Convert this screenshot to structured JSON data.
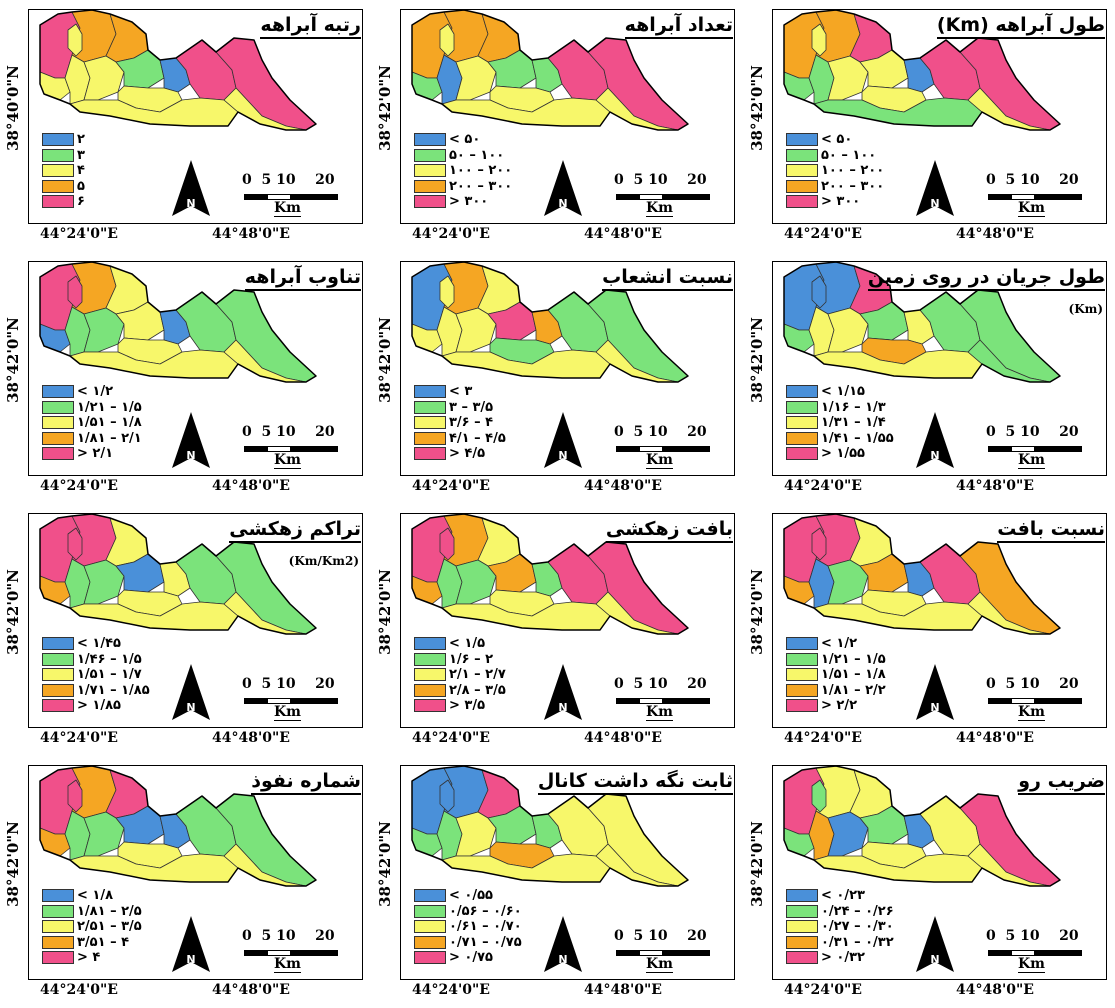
{
  "coords": {
    "lon_left": "44°24'0\"E",
    "lon_right": "44°48'0\"E",
    "lat_a": "38°40'0\"N",
    "lat_b": "38°42'0\"N"
  },
  "scale": {
    "numbers": "0  5 10    20",
    "unit": "Km"
  },
  "north_icon": "north-arrow-icon",
  "colors": {
    "blue": "#4a90d9",
    "green": "#7be37b",
    "yellow": "#f7f76a",
    "orange": "#f5a623",
    "pink": "#f0508a"
  },
  "maps": [
    {
      "title": "طول آبراهه (Km)",
      "subtitle": "",
      "lat": "38°42'0\"N",
      "legend": [
        "< ۵۰",
        "۵۰ – ۱۰۰",
        "۱۰۰ – ۲۰۰",
        "۲۰۰ – ۳۰۰",
        "> ۳۰۰"
      ],
      "fills": [
        "orange",
        "orange",
        "yellow",
        "pink",
        "green",
        "green",
        "yellow",
        "yellow",
        "blue",
        "yellow",
        "pink",
        "pink",
        "green",
        "yellow"
      ]
    },
    {
      "title": "تعداد آبراهه",
      "subtitle": "",
      "lat": "38°42'0\"N",
      "legend": [
        "< ۵۰",
        "۵۰ – ۱۰۰",
        "۱۰۰ – ۲۰۰",
        "۲۰۰ – ۳۰۰",
        "> ۳۰۰"
      ],
      "fills": [
        "orange",
        "orange",
        "yellow",
        "orange",
        "green",
        "blue",
        "yellow",
        "green",
        "green",
        "yellow",
        "pink",
        "pink",
        "yellow",
        "yellow"
      ]
    },
    {
      "title": "رتبه آبراهه",
      "subtitle": "",
      "lat": "38°40'0\"N",
      "legend": [
        "۲",
        "۳",
        "۴",
        "۵",
        "۶"
      ],
      "fills": [
        "pink",
        "orange",
        "yellow",
        "orange",
        "yellow",
        "yellow",
        "yellow",
        "green",
        "blue",
        "yellow",
        "pink",
        "pink",
        "yellow",
        "yellow"
      ]
    },
    {
      "title": "طول جریان در روی زمین",
      "subtitle": "(Km)",
      "lat": "38°42'0\"N",
      "legend": [
        "< ۱/۱۵",
        "۱/۱۶ – ۱/۳",
        "۱/۳۱ – ۱/۴",
        "۱/۴۱ – ۱/۵۵",
        "> ۱/۵۵"
      ],
      "fills": [
        "blue",
        "blue",
        "blue",
        "pink",
        "green",
        "yellow",
        "yellow",
        "green",
        "yellow",
        "orange",
        "green",
        "green",
        "yellow",
        "green"
      ]
    },
    {
      "title": "نسبت انشعاب",
      "subtitle": "",
      "lat": "38°42'0\"N",
      "legend": [
        "< ۳",
        "۳ – ۳/۵",
        "۳/۶ – ۴",
        "۴/۱ – ۴/۵",
        "> ۴/۵"
      ],
      "fills": [
        "blue",
        "orange",
        "yellow",
        "yellow",
        "yellow",
        "yellow",
        "yellow",
        "pink",
        "orange",
        "green",
        "green",
        "green",
        "yellow",
        "yellow"
      ]
    },
    {
      "title": "تناوب آبراهه",
      "subtitle": "",
      "lat": "38°42'0\"N",
      "legend": [
        "< ۱/۲",
        "۱/۲۱ – ۱/۵",
        "۱/۵۱ – ۱/۸",
        "۱/۸۱ – ۲/۱",
        "> ۲/۱"
      ],
      "fills": [
        "pink",
        "orange",
        "pink",
        "yellow",
        "blue",
        "green",
        "green",
        "yellow",
        "blue",
        "yellow",
        "green",
        "green",
        "yellow",
        "yellow"
      ]
    },
    {
      "title": "نسبت بافت",
      "subtitle": "",
      "lat": "38°42'0\"N",
      "legend": [
        "< ۱/۲",
        "۱/۲۱ – ۱/۵",
        "۱/۵۱ – ۱/۸",
        "۱/۸۱ – ۲/۲",
        "> ۲/۲"
      ],
      "fills": [
        "pink",
        "pink",
        "pink",
        "yellow",
        "orange",
        "blue",
        "green",
        "orange",
        "blue",
        "yellow",
        "pink",
        "orange",
        "yellow",
        "yellow"
      ]
    },
    {
      "title": "بافت زهکشی",
      "subtitle": "",
      "lat": "38°42'0\"N",
      "legend": [
        "< ۱/۵",
        "۱/۶ – ۲",
        "۲/۱ – ۲/۷",
        "۲/۸ – ۳/۵",
        "> ۳/۵"
      ],
      "fills": [
        "pink",
        "orange",
        "pink",
        "yellow",
        "orange",
        "green",
        "green",
        "orange",
        "green",
        "yellow",
        "pink",
        "pink",
        "yellow",
        "yellow"
      ]
    },
    {
      "title": "تراکم زهکشی",
      "subtitle": "(Km/Km2)",
      "lat": "38°42'0\"N",
      "legend": [
        "< ۱/۴۵",
        "۱/۴۶ – ۱/۵",
        "۱/۵۱ – ۱/۷",
        "۱/۷۱ – ۱/۸۵",
        "> ۱/۸۵"
      ],
      "fills": [
        "pink",
        "pink",
        "pink",
        "yellow",
        "orange",
        "green",
        "green",
        "blue",
        "yellow",
        "yellow",
        "green",
        "green",
        "yellow",
        "yellow"
      ]
    },
    {
      "title": "ضریب رو",
      "subtitle": "",
      "lat": "38°42'0\"N",
      "legend": [
        "< ۰/۲۳",
        "۰/۲۴ – ۰/۲۶",
        "۰/۲۷ – ۰/۳۰",
        "۰/۳۱ – ۰/۳۲",
        "> ۰/۳۲"
      ],
      "fills": [
        "pink",
        "yellow",
        "green",
        "yellow",
        "green",
        "orange",
        "blue",
        "green",
        "blue",
        "yellow",
        "yellow",
        "pink",
        "yellow",
        "yellow"
      ]
    },
    {
      "title": "ثابت نگه داشت کانال",
      "subtitle": "",
      "lat": "38°42'0\"N",
      "legend": [
        "< ۰/۵۵",
        "۰/۵۶ – ۰/۶۰",
        "۰/۶۱ – ۰/۷۰",
        "۰/۷۱ – ۰/۷۵",
        "> ۰/۷۵"
      ],
      "fills": [
        "blue",
        "blue",
        "blue",
        "pink",
        "green",
        "green",
        "yellow",
        "green",
        "green",
        "orange",
        "yellow",
        "yellow",
        "yellow",
        "yellow"
      ]
    },
    {
      "title": "شماره نفوذ",
      "subtitle": "",
      "lat": "38°42'0\"N",
      "legend": [
        "< ۱/۸",
        "۱/۸۱ – ۲/۵",
        "۲/۵۱ – ۳/۵",
        "۳/۵۱ – ۴",
        "> ۴"
      ],
      "fills": [
        "pink",
        "orange",
        "pink",
        "pink",
        "orange",
        "green",
        "green",
        "blue",
        "blue",
        "yellow",
        "green",
        "green",
        "yellow",
        "yellow"
      ]
    }
  ]
}
